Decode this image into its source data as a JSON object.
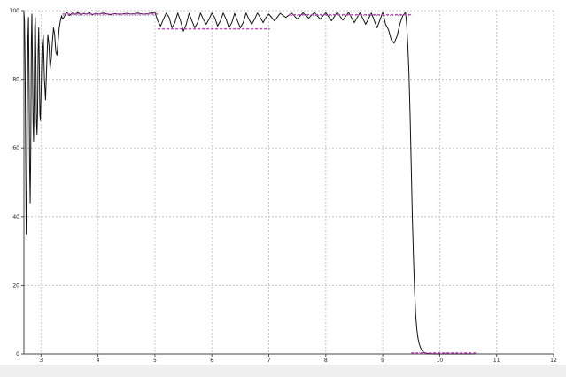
{
  "chart_data": {
    "type": "line",
    "title": "",
    "xlabel": "",
    "ylabel": "",
    "xlim": [
      2.7,
      12.0
    ],
    "ylim": [
      0,
      100
    ],
    "x_ticks": [
      "3",
      "4",
      "5",
      "6",
      "7",
      "8",
      "9",
      "10",
      "11",
      "12"
    ],
    "y_ticks": [
      "0",
      "20",
      "40",
      "60",
      "80",
      "100"
    ],
    "grid": true,
    "series": [
      {
        "style": "solid",
        "color": "#111111",
        "x": [
          2.7,
          2.71,
          2.72,
          2.73,
          2.74,
          2.75,
          2.76,
          2.77,
          2.78,
          2.79,
          2.8,
          2.81,
          2.82,
          2.83,
          2.84,
          2.85,
          2.86,
          2.87,
          2.88,
          2.89,
          2.9,
          2.91,
          2.92,
          2.93,
          2.94,
          2.95,
          2.96,
          2.97,
          2.98,
          2.99,
          3.0,
          3.02,
          3.04,
          3.06,
          3.08,
          3.1,
          3.12,
          3.14,
          3.16,
          3.18,
          3.2,
          3.22,
          3.24,
          3.26,
          3.28,
          3.3,
          3.32,
          3.34,
          3.36,
          3.38,
          3.4,
          3.45,
          3.5,
          3.55,
          3.6,
          3.65,
          3.7,
          3.75,
          3.8,
          3.85,
          3.9,
          3.95,
          4.0,
          4.1,
          4.2,
          4.3,
          4.4,
          4.5,
          4.6,
          4.7,
          4.8,
          4.9,
          5.0,
          5.05,
          5.1,
          5.15,
          5.2,
          5.25,
          5.3,
          5.35,
          5.4,
          5.45,
          5.5,
          5.55,
          5.6,
          5.65,
          5.7,
          5.75,
          5.8,
          5.85,
          5.9,
          5.95,
          6.0,
          6.05,
          6.1,
          6.15,
          6.2,
          6.25,
          6.3,
          6.35,
          6.4,
          6.45,
          6.5,
          6.55,
          6.6,
          6.65,
          6.7,
          6.75,
          6.8,
          6.85,
          6.9,
          6.95,
          7.0,
          7.1,
          7.2,
          7.3,
          7.4,
          7.5,
          7.6,
          7.7,
          7.8,
          7.9,
          8.0,
          8.1,
          8.2,
          8.3,
          8.4,
          8.5,
          8.6,
          8.7,
          8.8,
          8.9,
          9.0,
          9.05,
          9.1,
          9.15,
          9.2,
          9.25,
          9.3,
          9.35,
          9.4,
          9.42,
          9.44,
          9.46,
          9.48,
          9.5,
          9.52,
          9.54,
          9.56,
          9.58,
          9.6,
          9.62,
          9.64,
          9.66,
          9.68,
          9.7,
          9.72,
          9.74,
          9.76,
          9.8,
          9.85,
          9.9,
          10.0,
          10.2,
          10.4,
          10.6
        ],
        "values": [
          99.5,
          97,
          85,
          60,
          35,
          40,
          70,
          92,
          98,
          80,
          55,
          44,
          60,
          90,
          99,
          85,
          68,
          62,
          75,
          95,
          98,
          86,
          68,
          64,
          70,
          88,
          95,
          85,
          70,
          68,
          75,
          90,
          93,
          80,
          74,
          84,
          93,
          90,
          83,
          86,
          91,
          95,
          93,
          88,
          87,
          91,
          95,
          97,
          98.5,
          97.5,
          98,
          99.5,
          98.6,
          99.3,
          98.9,
          99.5,
          98.7,
          99.2,
          99.0,
          99.4,
          98.8,
          99.2,
          99.0,
          99.3,
          98.8,
          99.1,
          98.9,
          99.2,
          99.0,
          99.3,
          98.9,
          99.2,
          99.5,
          97.0,
          95.5,
          97.5,
          99.3,
          98.0,
          95.0,
          96.5,
          99.3,
          97.0,
          94.0,
          96.0,
          99.2,
          97.0,
          95.0,
          96.5,
          99.3,
          97.5,
          96.0,
          97.5,
          99.3,
          98.0,
          95.5,
          97.0,
          99.3,
          97.5,
          95.0,
          96.5,
          99.2,
          97.0,
          95.0,
          96.5,
          99.3,
          97.5,
          96.0,
          97.5,
          99.3,
          98.0,
          96.5,
          98.0,
          99.0,
          97.0,
          99.2,
          98.0,
          99.3,
          97.5,
          99.4,
          97.8,
          99.5,
          97.5,
          99.4,
          97.0,
          99.5,
          97.2,
          99.5,
          96.5,
          99.4,
          96.0,
          99.3,
          95.0,
          99.5,
          96.0,
          94.5,
          91.5,
          90.5,
          92.5,
          96.0,
          98.5,
          99.5,
          96.0,
          90.0,
          82.0,
          70.0,
          55.0,
          40.0,
          28.0,
          18.0,
          11.0,
          7.0,
          4.5,
          3.0,
          2.0,
          1.2,
          0.8,
          0.5,
          0.3,
          0.2,
          0.1,
          0.05,
          0.0,
          0.0,
          0.0,
          0.0,
          0.0
        ]
      },
      {
        "style": "dashed",
        "color": "#cc44cc",
        "segments": [
          {
            "x": [
              3.38,
              5.05
            ],
            "y": [
              99.0,
              99.0
            ]
          },
          {
            "x": [
              5.05,
              7.02
            ],
            "y": [
              94.7,
              94.7
            ]
          },
          {
            "x": [
              7.35,
              9.5
            ],
            "y": [
              98.8,
              98.8
            ]
          },
          {
            "x": [
              9.5,
              10.65
            ],
            "y": [
              0.3,
              0.3
            ]
          }
        ]
      },
      {
        "style": "dotted",
        "color": "#7a7a7a",
        "segments": [
          {
            "x": [
              3.38,
              5.05
            ],
            "y": [
              98.6,
              98.6
            ]
          },
          {
            "x": [
              7.35,
              9.5
            ],
            "y": [
              98.6,
              98.6
            ]
          }
        ]
      }
    ]
  }
}
